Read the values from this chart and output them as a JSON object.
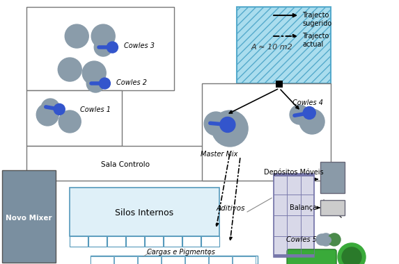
{
  "bg_color": "#ffffff",
  "legend_solid_arrow": "Trajecto\nsugerido",
  "legend_dash_arrow": "Trajecto\nactual",
  "gray_c": "#8a9caa",
  "blue_c": "#3355cc",
  "room_border": "#777777",
  "sala_controlo_label": "Sala Controlo",
  "silos_label": "Silos Internos",
  "silos_fill": "#dff0f8",
  "silos_border": "#5599bb",
  "novo_mixer_label": "Novo Mixer",
  "novo_mixer_fill": "#7a8fa0",
  "area_fill": "#aaddee",
  "area_hatch_color": "#55aacc",
  "area_label": "A ≈ 10 m2",
  "depositos_label": "Depósitos Móveis",
  "depositos_fill": "#d8d8e8",
  "depositos_border": "#7777aa",
  "balanca_label": "Balança",
  "cowles5_label": "Cowles 5",
  "master_mix_label": "Master Mix",
  "aditivos_label": "Aditivos",
  "cargas_label": "Cargas e Pigmentos",
  "cowles1_label": "Cowles 1",
  "cowles2_label": "Cowles 2",
  "cowles3_label": "Cowles 3",
  "cowles4_label": "Cowles 4",
  "green_c": "#2a7a2a",
  "green_light": "#3aaa3a",
  "gray_box": "#8a9aa8",
  "gray_box2": "#aabbcc"
}
